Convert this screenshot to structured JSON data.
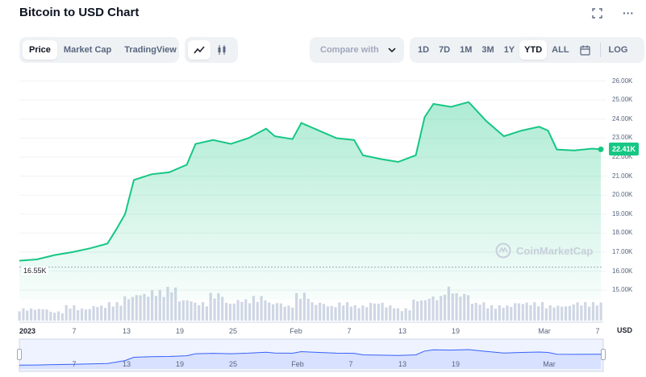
{
  "title": "Bitcoin to USD Chart",
  "header_icons": {
    "fullscreen": "fullscreen-icon",
    "more": "more-icon"
  },
  "view_tabs": [
    "Price",
    "Market Cap",
    "TradingView"
  ],
  "active_view": "Price",
  "chart_types": [
    "line-chart-icon",
    "candlestick-icon"
  ],
  "compare_placeholder": "Compare with",
  "ranges": [
    "1D",
    "7D",
    "1M",
    "3M",
    "1Y",
    "YTD",
    "ALL"
  ],
  "active_range": "YTD",
  "log_label": "LOG",
  "calendar_icon": "calendar-icon",
  "watermark": "CoinMarketCap",
  "current_price": "22.41K",
  "low_label": "16.55K",
  "currency_label": "USD",
  "colors": {
    "line": "#16c784",
    "volume": "#cfd6e4",
    "navigator": "#3861fb"
  },
  "chart_data": {
    "type": "area",
    "title": "Bitcoin to USD Chart",
    "y_ticks": [
      "26.00K",
      "25.00K",
      "24.00K",
      "23.00K",
      "22.00K",
      "21.00K",
      "20.00K",
      "19.00K",
      "18.00K",
      "17.00K",
      "16.00K",
      "15.00K"
    ],
    "x_ticks": [
      "2023",
      "7",
      "13",
      "19",
      "25",
      "Feb",
      "7",
      "13",
      "19",
      "Mar",
      "7"
    ],
    "nav_ticks": [
      "7",
      "13",
      "19",
      "25",
      "Feb",
      "7",
      "13",
      "19",
      "Mar"
    ],
    "ylim": [
      14500,
      26200
    ],
    "x": [
      "2023-01-01",
      "2023-01-03",
      "2023-01-05",
      "2023-01-07",
      "2023-01-09",
      "2023-01-11",
      "2023-01-12",
      "2023-01-13",
      "2023-01-14",
      "2023-01-16",
      "2023-01-18",
      "2023-01-20",
      "2023-01-21",
      "2023-01-23",
      "2023-01-25",
      "2023-01-27",
      "2023-01-29",
      "2023-01-30",
      "2023-02-01",
      "2023-02-02",
      "2023-02-04",
      "2023-02-06",
      "2023-02-08",
      "2023-02-09",
      "2023-02-11",
      "2023-02-13",
      "2023-02-15",
      "2023-02-16",
      "2023-02-17",
      "2023-02-19",
      "2023-02-21",
      "2023-02-23",
      "2023-02-25",
      "2023-02-27",
      "2023-03-01",
      "2023-03-02",
      "2023-03-03",
      "2023-03-05",
      "2023-03-07",
      "2023-03-08"
    ],
    "values": [
      16550,
      16620,
      16850,
      17000,
      17200,
      17450,
      18200,
      19000,
      20800,
      21100,
      21200,
      21600,
      22700,
      22900,
      22700,
      23000,
      23500,
      23100,
      22950,
      23800,
      23400,
      23000,
      22900,
      22100,
      21900,
      21750,
      22100,
      24100,
      24800,
      24650,
      24900,
      23900,
      23100,
      23400,
      23600,
      23400,
      22400,
      22350,
      22450,
      22410
    ],
    "volume_note": "volume bars shown beneath price",
    "volume": [
      4,
      4,
      3,
      5,
      4,
      5,
      6,
      8,
      9,
      10,
      11,
      7,
      6,
      9,
      6,
      7,
      8,
      6,
      5,
      9,
      6,
      5,
      6,
      5,
      6,
      5,
      4,
      7,
      8,
      11,
      9,
      6,
      5,
      5,
      6,
      6,
      5,
      5,
      6,
      6
    ]
  }
}
